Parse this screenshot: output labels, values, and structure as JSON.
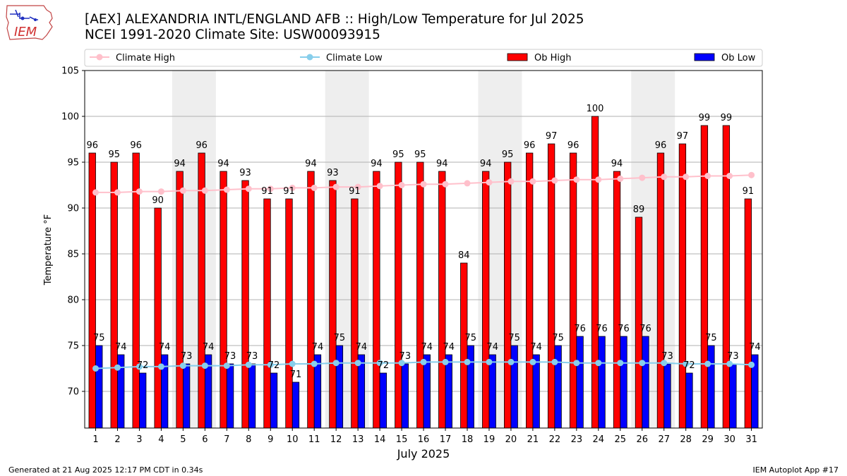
{
  "header": {
    "title_line1": "[AEX] ALEXANDRIA INTL/ENGLAND AFB :: High/Low Temperature for Jul 2025",
    "title_line2": "NCEI 1991-2020 Climate Site: USW00093915"
  },
  "logo": {
    "text": "IEM"
  },
  "footer": {
    "generated": "Generated at 21 Aug 2025 12:17 PM CDT in 0.34s",
    "app": "IEM Autoplot App #17"
  },
  "colors": {
    "ob_high": "#ff0000",
    "ob_low": "#0000ff",
    "climate_high": "#ffc0cb",
    "climate_low": "#87ceeb",
    "weekend_shade": "#eeeeee",
    "grid": "#b0b0b0"
  },
  "chart_data": {
    "type": "bar",
    "title": "[AEX] ALEXANDRIA INTL/ENGLAND AFB :: High/Low Temperature for Jul 2025",
    "xlabel": "July 2025",
    "ylabel": "Temperature °F",
    "ylim": [
      66,
      105
    ],
    "yticks": [
      70,
      75,
      80,
      85,
      90,
      95,
      100,
      105
    ],
    "categories": [
      "1",
      "2",
      "3",
      "4",
      "5",
      "6",
      "7",
      "8",
      "9",
      "10",
      "11",
      "12",
      "13",
      "14",
      "15",
      "16",
      "17",
      "18",
      "19",
      "20",
      "21",
      "22",
      "23",
      "24",
      "25",
      "26",
      "27",
      "28",
      "29",
      "30",
      "31"
    ],
    "shaded_days": [
      [
        5,
        6
      ],
      [
        12,
        13
      ],
      [
        19,
        20
      ],
      [
        26,
        27
      ]
    ],
    "grid": true,
    "legend_position": "top",
    "series": [
      {
        "name": "Climate High",
        "kind": "line",
        "values": [
          91.7,
          91.7,
          91.8,
          91.8,
          91.9,
          91.9,
          92.0,
          92.1,
          92.1,
          92.2,
          92.2,
          92.3,
          92.3,
          92.4,
          92.5,
          92.6,
          92.6,
          92.7,
          92.8,
          92.9,
          92.9,
          93.0,
          93.1,
          93.1,
          93.2,
          93.3,
          93.4,
          93.4,
          93.5,
          93.5,
          93.6
        ]
      },
      {
        "name": "Climate Low",
        "kind": "line",
        "values": [
          72.5,
          72.6,
          72.7,
          72.7,
          72.8,
          72.8,
          72.8,
          72.9,
          72.9,
          73.0,
          73.0,
          73.1,
          73.1,
          73.1,
          73.1,
          73.2,
          73.2,
          73.2,
          73.2,
          73.2,
          73.2,
          73.2,
          73.1,
          73.1,
          73.1,
          73.1,
          73.1,
          73.0,
          73.0,
          73.0,
          72.9
        ]
      },
      {
        "name": "Ob High",
        "kind": "bar",
        "values": [
          96,
          95,
          96,
          90,
          94,
          96,
          94,
          93,
          91,
          91,
          94,
          93,
          91,
          94,
          95,
          95,
          94,
          84,
          94,
          95,
          96,
          97,
          96,
          100,
          94,
          89,
          96,
          97,
          99,
          99,
          91
        ]
      },
      {
        "name": "Ob Low",
        "kind": "bar",
        "values": [
          75,
          74,
          72,
          74,
          73,
          74,
          73,
          73,
          72,
          71,
          74,
          75,
          74,
          72,
          73,
          74,
          74,
          75,
          74,
          75,
          74,
          75,
          76,
          76,
          76,
          76,
          73,
          72,
          75,
          73,
          74
        ]
      }
    ]
  }
}
